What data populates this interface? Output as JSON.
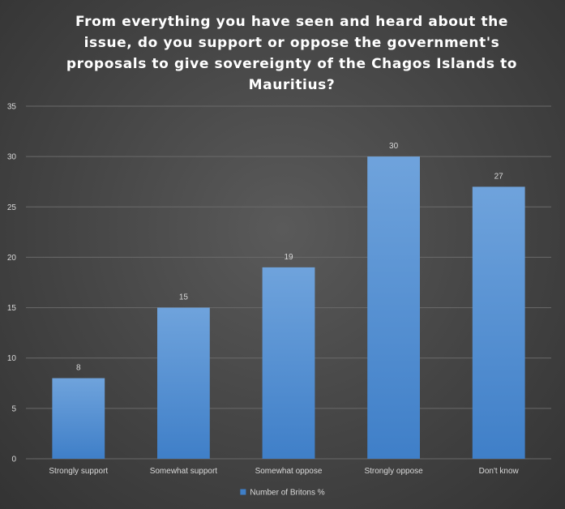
{
  "chart_data": {
    "type": "bar",
    "title": "From everything you have seen and heard about the issue, do you support or oppose the government's proposals to give sovereignty of the Chagos Islands to Mauritius?",
    "categories": [
      "Strongly support",
      "Somewhat support",
      "Somewhat oppose",
      "Strongly oppose",
      "Don't know"
    ],
    "series": [
      {
        "name": "Number of Britons %",
        "values": [
          8,
          15,
          19,
          30,
          27
        ]
      }
    ],
    "ylim": [
      0,
      35
    ],
    "yticks": [
      0,
      5,
      10,
      15,
      20,
      25,
      30,
      35
    ],
    "xlabel": "",
    "ylabel": "",
    "grid": true,
    "legend_position": "bottom",
    "data_labels": true,
    "colors": {
      "bar_top": "#6fa3dc",
      "bar_bottom": "#3f7fc8",
      "gridline": "#6a6a6a",
      "text": "#d9d9d9",
      "title": "#ffffff"
    }
  }
}
